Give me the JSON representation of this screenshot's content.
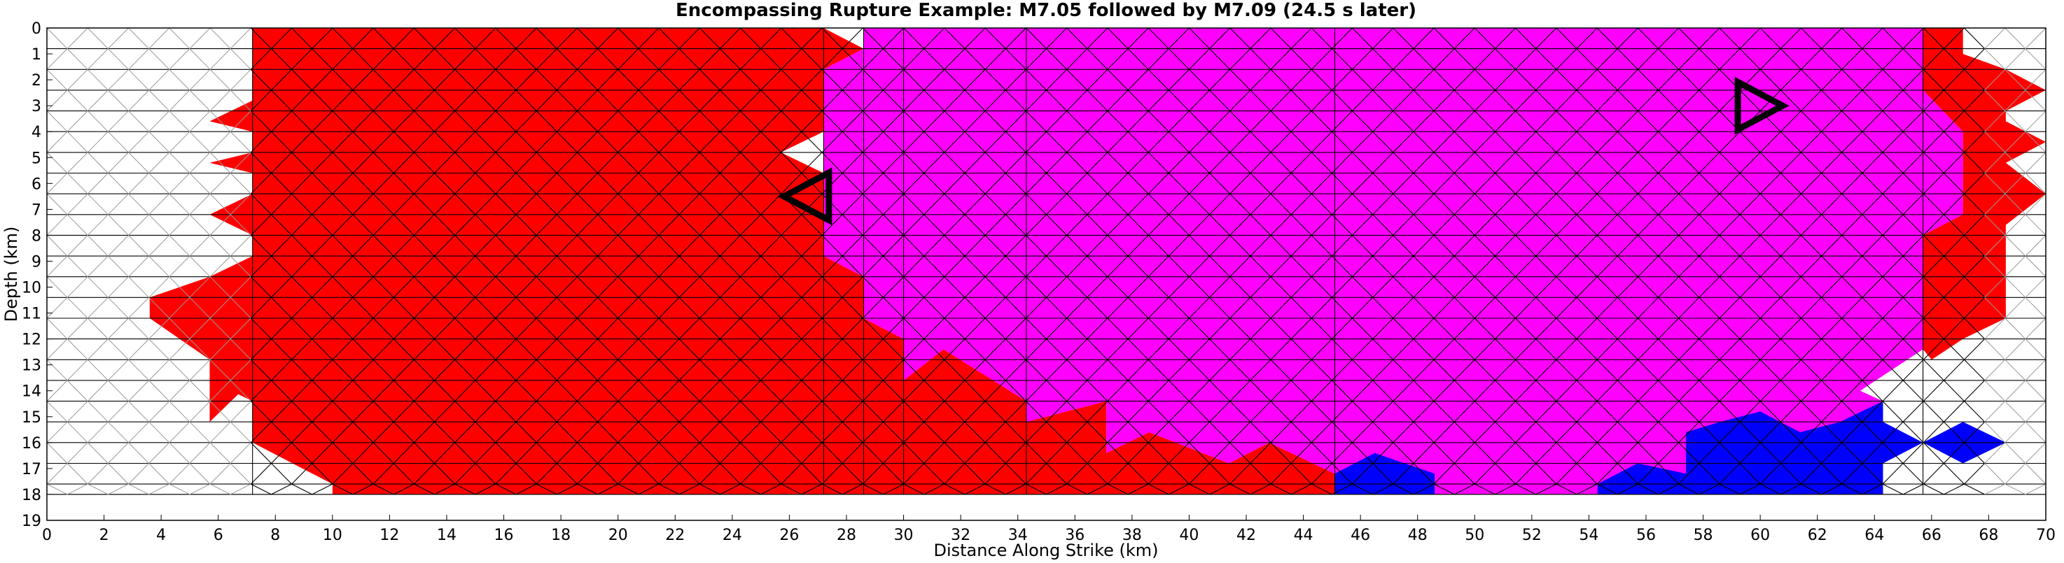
{
  "chart_data": {
    "type": "heatmap",
    "title": "Encompassing Rupture Example: M7.05 followed by M7.09 (24.5 s later)",
    "xlabel": "Distance Along Strike (km)",
    "ylabel": "Depth (km)",
    "xlim": [
      0,
      70
    ],
    "ylim": [
      19,
      0
    ],
    "x_ticks": [
      "0",
      "2",
      "4",
      "6",
      "8",
      "10",
      "12",
      "14",
      "16",
      "18",
      "20",
      "22",
      "24",
      "26",
      "28",
      "30",
      "32",
      "34",
      "36",
      "38",
      "40",
      "42",
      "44",
      "46",
      "48",
      "50",
      "52",
      "54",
      "56",
      "58",
      "60",
      "62",
      "64",
      "66",
      "68",
      "70"
    ],
    "y_ticks": [
      "0",
      "1",
      "2",
      "3",
      "4",
      "5",
      "6",
      "7",
      "8",
      "9",
      "10",
      "11",
      "12",
      "13",
      "14",
      "15",
      "16",
      "17",
      "18",
      "19"
    ],
    "grid": "triangular fault mesh, row height 0.8 km, element width ~1.4 km, depth 0-18 km",
    "colors": {
      "first_event": "#ff0000",
      "second_event": "#ff00ff",
      "third_region": "#0000ff",
      "unruptured": "#ffffff",
      "mesh_line_ruptured": "#000000",
      "mesh_line_unruptured": "#999999"
    },
    "regions": [
      {
        "role": "M7.05 rupture",
        "color": "#ff0000",
        "polygon": [
          [
            7.2,
            0
          ],
          [
            27.2,
            0
          ],
          [
            28.6,
            0.8
          ],
          [
            27.2,
            1.6
          ],
          [
            27.2,
            4.0
          ],
          [
            25.7,
            4.8
          ],
          [
            27.2,
            5.6
          ],
          [
            27.2,
            8.8
          ],
          [
            28.6,
            9.6
          ],
          [
            28.6,
            11.2
          ],
          [
            30.0,
            12.0
          ],
          [
            30.0,
            13.6
          ],
          [
            31.4,
            12.4
          ],
          [
            34.3,
            14.4
          ],
          [
            34.3,
            15.2
          ],
          [
            37.1,
            14.4
          ],
          [
            37.1,
            16.4
          ],
          [
            38.6,
            15.6
          ],
          [
            41.4,
            16.8
          ],
          [
            42.8,
            16.0
          ],
          [
            45.1,
            17.2
          ],
          [
            45.1,
            18.0
          ],
          [
            10.0,
            18.0
          ],
          [
            10.0,
            17.6
          ],
          [
            8.6,
            16.8
          ],
          [
            7.2,
            16.0
          ],
          [
            7.2,
            14.4
          ],
          [
            5.7,
            13.6
          ],
          [
            5.7,
            12.8
          ],
          [
            3.6,
            11.2
          ],
          [
            3.6,
            10.4
          ],
          [
            5.7,
            9.6
          ],
          [
            7.2,
            8.8
          ],
          [
            7.2,
            8.0
          ],
          [
            5.7,
            7.2
          ],
          [
            7.2,
            6.4
          ],
          [
            7.2,
            5.6
          ],
          [
            5.7,
            5.2
          ],
          [
            7.2,
            4.8
          ],
          [
            7.2,
            4.0
          ],
          [
            5.7,
            3.6
          ],
          [
            7.2,
            2.8
          ]
        ]
      },
      {
        "role": "M7.09 rupture",
        "color": "#ff00ff",
        "polygon": [
          [
            28.6,
            0
          ],
          [
            65.7,
            0
          ],
          [
            65.7,
            2.4
          ],
          [
            67.1,
            4.0
          ],
          [
            67.1,
            7.2
          ],
          [
            65.7,
            8.0
          ],
          [
            65.7,
            12.4
          ],
          [
            63.5,
            14.0
          ],
          [
            64.3,
            14.4
          ],
          [
            61.4,
            16.0
          ],
          [
            58.6,
            15.2
          ],
          [
            57.4,
            17.2
          ],
          [
            57.4,
            18.0
          ],
          [
            48.6,
            18.0
          ],
          [
            48.6,
            17.2
          ],
          [
            45.1,
            17.2
          ],
          [
            42.8,
            16.0
          ],
          [
            41.4,
            16.8
          ],
          [
            38.6,
            15.6
          ],
          [
            37.1,
            16.4
          ],
          [
            37.1,
            14.4
          ],
          [
            34.3,
            15.2
          ],
          [
            34.3,
            14.4
          ],
          [
            31.4,
            12.4
          ],
          [
            30.0,
            13.6
          ],
          [
            30.0,
            12.0
          ],
          [
            28.6,
            11.2
          ],
          [
            28.6,
            9.6
          ],
          [
            27.2,
            8.8
          ],
          [
            27.2,
            1.6
          ],
          [
            28.6,
            0.8
          ]
        ]
      },
      {
        "role": "region A",
        "color": "#0000ff",
        "polygon": [
          [
            45.1,
            17.2
          ],
          [
            46.5,
            16.4
          ],
          [
            48.6,
            17.2
          ],
          [
            48.6,
            18.0
          ],
          [
            45.1,
            18.0
          ]
        ]
      },
      {
        "role": "region B",
        "color": "#0000ff",
        "polygon": [
          [
            54.3,
            18.0
          ],
          [
            54.3,
            17.6
          ],
          [
            55.7,
            16.8
          ],
          [
            57.4,
            17.2
          ],
          [
            57.4,
            15.6
          ],
          [
            58.6,
            15.2
          ],
          [
            60.0,
            14.8
          ],
          [
            61.4,
            15.6
          ],
          [
            62.8,
            15.2
          ],
          [
            64.3,
            14.4
          ],
          [
            64.3,
            15.2
          ],
          [
            65.7,
            16.0
          ],
          [
            64.3,
            16.8
          ],
          [
            64.3,
            18.0
          ]
        ]
      },
      {
        "role": "region C",
        "color": "#0000ff",
        "polygon": [
          [
            65.7,
            16.0
          ],
          [
            67.1,
            15.2
          ],
          [
            68.6,
            16.0
          ],
          [
            67.1,
            16.8
          ]
        ]
      },
      {
        "role": "M7.05 fringe right",
        "color": "#ff0000",
        "polygon": [
          [
            65.7,
            0
          ],
          [
            67.1,
            0
          ],
          [
            67.1,
            1.0
          ],
          [
            68.6,
            1.6
          ],
          [
            70.0,
            2.4
          ],
          [
            68.6,
            3.2
          ],
          [
            68.6,
            3.6
          ],
          [
            70.0,
            4.4
          ],
          [
            68.6,
            5.2
          ],
          [
            70.0,
            6.4
          ],
          [
            68.6,
            7.6
          ],
          [
            68.6,
            11.2
          ],
          [
            67.1,
            12.0
          ],
          [
            66.0,
            12.8
          ],
          [
            65.7,
            12.4
          ],
          [
            65.7,
            8.0
          ],
          [
            67.1,
            7.2
          ],
          [
            67.1,
            4.0
          ],
          [
            65.7,
            2.4
          ]
        ]
      },
      {
        "role": "M7.05 fringe small",
        "color": "#ff0000",
        "polygon": [
          [
            5.7,
            13.6
          ],
          [
            7.2,
            13.6
          ],
          [
            5.7,
            15.2
          ]
        ]
      }
    ],
    "hypocenters": [
      {
        "event": "M7.05",
        "x": 26.6,
        "y": 6.5,
        "direction": "left"
      },
      {
        "event": "M7.09",
        "x": 60.0,
        "y": 3.0,
        "direction": "right"
      }
    ]
  }
}
